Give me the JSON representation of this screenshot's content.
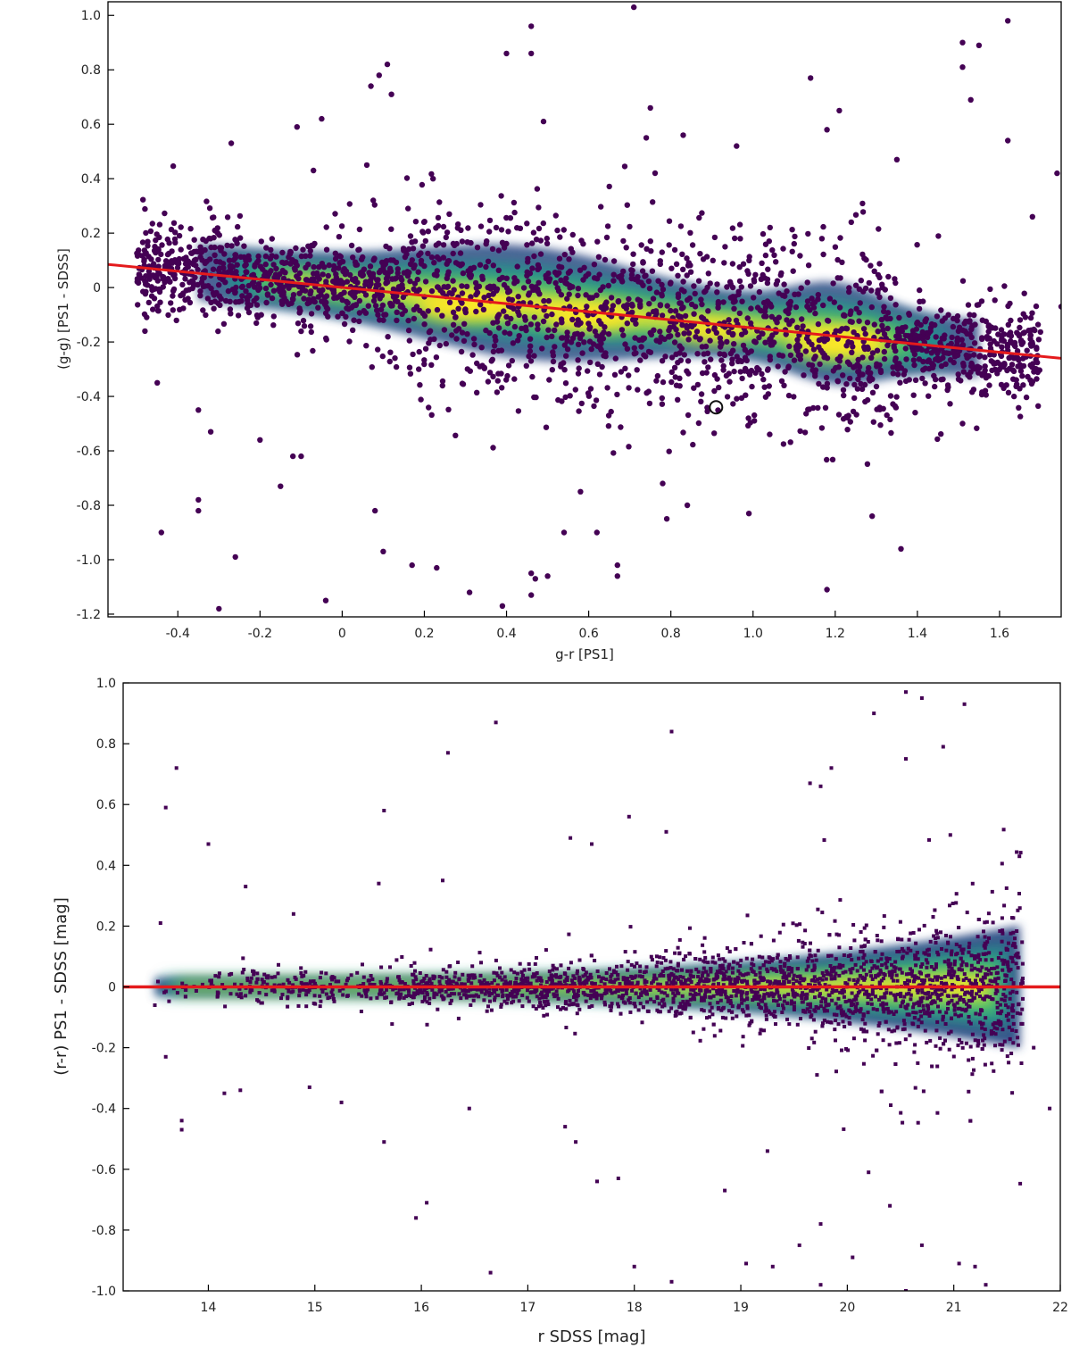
{
  "chart_data": [
    {
      "id": "top",
      "type": "scatter",
      "subtype": "density-colored scatter with linear fit",
      "xlabel": "g-r [PS1]",
      "ylabel": "(g-g) [PS1 - SDSS]",
      "xlim": [
        -0.57,
        1.75
      ],
      "ylim": [
        -1.21,
        1.05
      ],
      "xticks": [
        -0.4,
        -0.2,
        0,
        0.2,
        0.4,
        0.6,
        0.8,
        1.0,
        1.2,
        1.4,
        1.6
      ],
      "xtick_labels": [
        "-0.4",
        "-0.2",
        "0",
        "0.2",
        "0.4",
        "0.6",
        "0.8",
        "1.0",
        "1.2",
        "1.4",
        "1.6"
      ],
      "yticks": [
        -1.2,
        -1.0,
        -0.8,
        -0.6,
        -0.4,
        -0.2,
        0,
        0.2,
        0.4,
        0.6,
        0.8,
        1.0
      ],
      "ytick_labels": [
        "-1.2",
        "-1.0",
        "-0.8",
        "-0.6",
        "-0.4",
        "-0.2",
        "0",
        "0.2",
        "0.4",
        "0.6",
        "0.8",
        "1.0"
      ],
      "fit_line": {
        "x": [
          -0.57,
          1.75
        ],
        "y": [
          0.085,
          -0.26
        ],
        "color": "#e41a1c"
      },
      "density_core": [
        {
          "x": 0.3,
          "y": -0.07,
          "weight": 1.0
        },
        {
          "x": 0.6,
          "y": -0.11,
          "weight": 0.9
        },
        {
          "x": 0.9,
          "y": -0.16,
          "weight": 0.75
        },
        {
          "x": 1.21,
          "y": -0.21,
          "weight": 1.0
        }
      ],
      "outliers": [
        [
          0.71,
          1.03
        ],
        [
          0.46,
          0.96
        ],
        [
          1.62,
          0.98
        ],
        [
          1.51,
          0.9
        ],
        [
          1.55,
          0.89
        ],
        [
          0.4,
          0.86
        ],
        [
          0.46,
          0.86
        ],
        [
          0.11,
          0.82
        ],
        [
          1.51,
          0.81
        ],
        [
          0.09,
          0.78
        ],
        [
          1.14,
          0.77
        ],
        [
          0.07,
          0.74
        ],
        [
          0.12,
          0.71
        ],
        [
          1.53,
          0.69
        ],
        [
          0.75,
          0.66
        ],
        [
          1.21,
          0.65
        ],
        [
          -0.05,
          0.62
        ],
        [
          0.49,
          0.61
        ],
        [
          0.74,
          0.55
        ],
        [
          0.96,
          0.52
        ],
        [
          -0.27,
          0.53
        ],
        [
          -0.11,
          0.59
        ],
        [
          0.83,
          0.56
        ],
        [
          1.18,
          0.58
        ],
        [
          1.62,
          0.54
        ],
        [
          -0.07,
          0.43
        ],
        [
          0.06,
          0.45
        ],
        [
          1.35,
          0.47
        ],
        [
          1.74,
          0.42
        ],
        [
          -0.31,
          0.21
        ],
        [
          1.68,
          0.26
        ],
        [
          -0.45,
          -0.35
        ],
        [
          -0.48,
          -0.16
        ],
        [
          -0.35,
          -0.45
        ],
        [
          -0.32,
          -0.53
        ],
        [
          -0.2,
          -0.56
        ],
        [
          -0.15,
          -0.73
        ],
        [
          -0.35,
          -0.78
        ],
        [
          -0.35,
          -0.82
        ],
        [
          -0.44,
          -0.9
        ],
        [
          -0.26,
          -0.99
        ],
        [
          -0.3,
          -1.18
        ],
        [
          -0.04,
          -1.15
        ],
        [
          0.17,
          -1.02
        ],
        [
          0.23,
          -1.03
        ],
        [
          0.31,
          -1.12
        ],
        [
          0.39,
          -1.17
        ],
        [
          0.46,
          -1.05
        ],
        [
          0.47,
          -1.07
        ],
        [
          0.5,
          -1.06
        ],
        [
          0.46,
          -1.13
        ],
        [
          0.67,
          -1.02
        ],
        [
          0.67,
          -1.06
        ],
        [
          0.99,
          -0.83
        ],
        [
          1.18,
          -1.11
        ],
        [
          1.36,
          -0.96
        ],
        [
          1.29,
          -0.84
        ],
        [
          1.51,
          -0.5
        ],
        [
          0.1,
          -0.97
        ],
        [
          0.08,
          -0.82
        ],
        [
          0.54,
          -0.9
        ],
        [
          0.58,
          -0.75
        ],
        [
          0.62,
          -0.9
        ],
        [
          0.78,
          -0.72
        ],
        [
          0.79,
          -0.85
        ],
        [
          0.84,
          -0.8
        ],
        [
          -0.12,
          -0.62
        ],
        [
          -0.1,
          -0.62
        ],
        [
          1.69,
          -0.3
        ],
        [
          1.75,
          -0.07
        ]
      ],
      "marker": {
        "x": 0.91,
        "y": -0.44
      }
    },
    {
      "id": "bottom",
      "type": "scatter",
      "subtype": "density-colored scatter with zero line",
      "xlabel": "r SDSS [mag]",
      "ylabel": "(r-r) PS1 - SDSS [mag]",
      "xlim": [
        13.2,
        22.0
      ],
      "ylim": [
        -1.0,
        1.0
      ],
      "xticks": [
        14,
        15,
        16,
        17,
        18,
        19,
        20,
        21,
        22
      ],
      "xtick_labels": [
        "14",
        "15",
        "16",
        "17",
        "18",
        "19",
        "20",
        "21",
        "22"
      ],
      "yticks": [
        -1.0,
        -0.8,
        -0.6,
        -0.4,
        -0.2,
        0,
        0.2,
        0.4,
        0.6,
        0.8,
        1.0
      ],
      "ytick_labels": [
        "-1.0",
        "-0.8",
        "-0.6",
        "-0.4",
        "-0.2",
        "0",
        "0.2",
        "0.4",
        "0.6",
        "0.8",
        "1.0"
      ],
      "fit_line": {
        "x": [
          13.2,
          22.0
        ],
        "y": [
          0.0,
          0.0
        ],
        "color": "#e41a1c"
      },
      "outliers": [
        [
          13.7,
          0.72
        ],
        [
          13.6,
          0.59
        ],
        [
          14.0,
          0.47
        ],
        [
          16.7,
          0.87
        ],
        [
          16.25,
          0.77
        ],
        [
          18.35,
          0.84
        ],
        [
          15.65,
          0.58
        ],
        [
          17.95,
          0.56
        ],
        [
          20.55,
          0.97
        ],
        [
          20.25,
          0.9
        ],
        [
          20.7,
          0.95
        ],
        [
          21.1,
          0.93
        ],
        [
          20.55,
          0.75
        ],
        [
          20.9,
          0.79
        ],
        [
          19.85,
          0.72
        ],
        [
          19.75,
          0.66
        ],
        [
          19.65,
          0.67
        ],
        [
          17.4,
          0.49
        ],
        [
          17.6,
          0.47
        ],
        [
          18.3,
          0.51
        ],
        [
          14.35,
          0.33
        ],
        [
          14.8,
          0.24
        ],
        [
          15.6,
          0.34
        ],
        [
          16.2,
          0.35
        ],
        [
          13.55,
          0.21
        ],
        [
          13.6,
          -0.23
        ],
        [
          13.75,
          -0.44
        ],
        [
          13.75,
          -0.47
        ],
        [
          14.15,
          -0.35
        ],
        [
          14.3,
          -0.34
        ],
        [
          14.95,
          -0.33
        ],
        [
          15.25,
          -0.38
        ],
        [
          15.65,
          -0.51
        ],
        [
          15.95,
          -0.76
        ],
        [
          16.05,
          -0.71
        ],
        [
          16.65,
          -0.94
        ],
        [
          16.45,
          -0.4
        ],
        [
          17.35,
          -0.46
        ],
        [
          17.45,
          -0.51
        ],
        [
          17.65,
          -0.64
        ],
        [
          17.85,
          -0.63
        ],
        [
          18.0,
          -0.92
        ],
        [
          18.35,
          -0.97
        ],
        [
          18.85,
          -0.67
        ],
        [
          19.05,
          -0.91
        ],
        [
          19.3,
          -0.92
        ],
        [
          19.25,
          -0.54
        ],
        [
          19.75,
          -0.98
        ],
        [
          20.05,
          -0.89
        ],
        [
          20.55,
          -1.0
        ],
        [
          20.7,
          -0.85
        ],
        [
          21.05,
          -0.91
        ],
        [
          21.2,
          -0.92
        ],
        [
          21.3,
          -0.98
        ],
        [
          21.9,
          -0.4
        ],
        [
          21.75,
          -0.2
        ],
        [
          19.75,
          -0.78
        ],
        [
          19.55,
          -0.85
        ],
        [
          20.2,
          -0.61
        ],
        [
          20.4,
          -0.72
        ]
      ]
    }
  ],
  "colormap": [
    "#440154",
    "#3b528b",
    "#21918c",
    "#5ec962",
    "#fde725"
  ]
}
